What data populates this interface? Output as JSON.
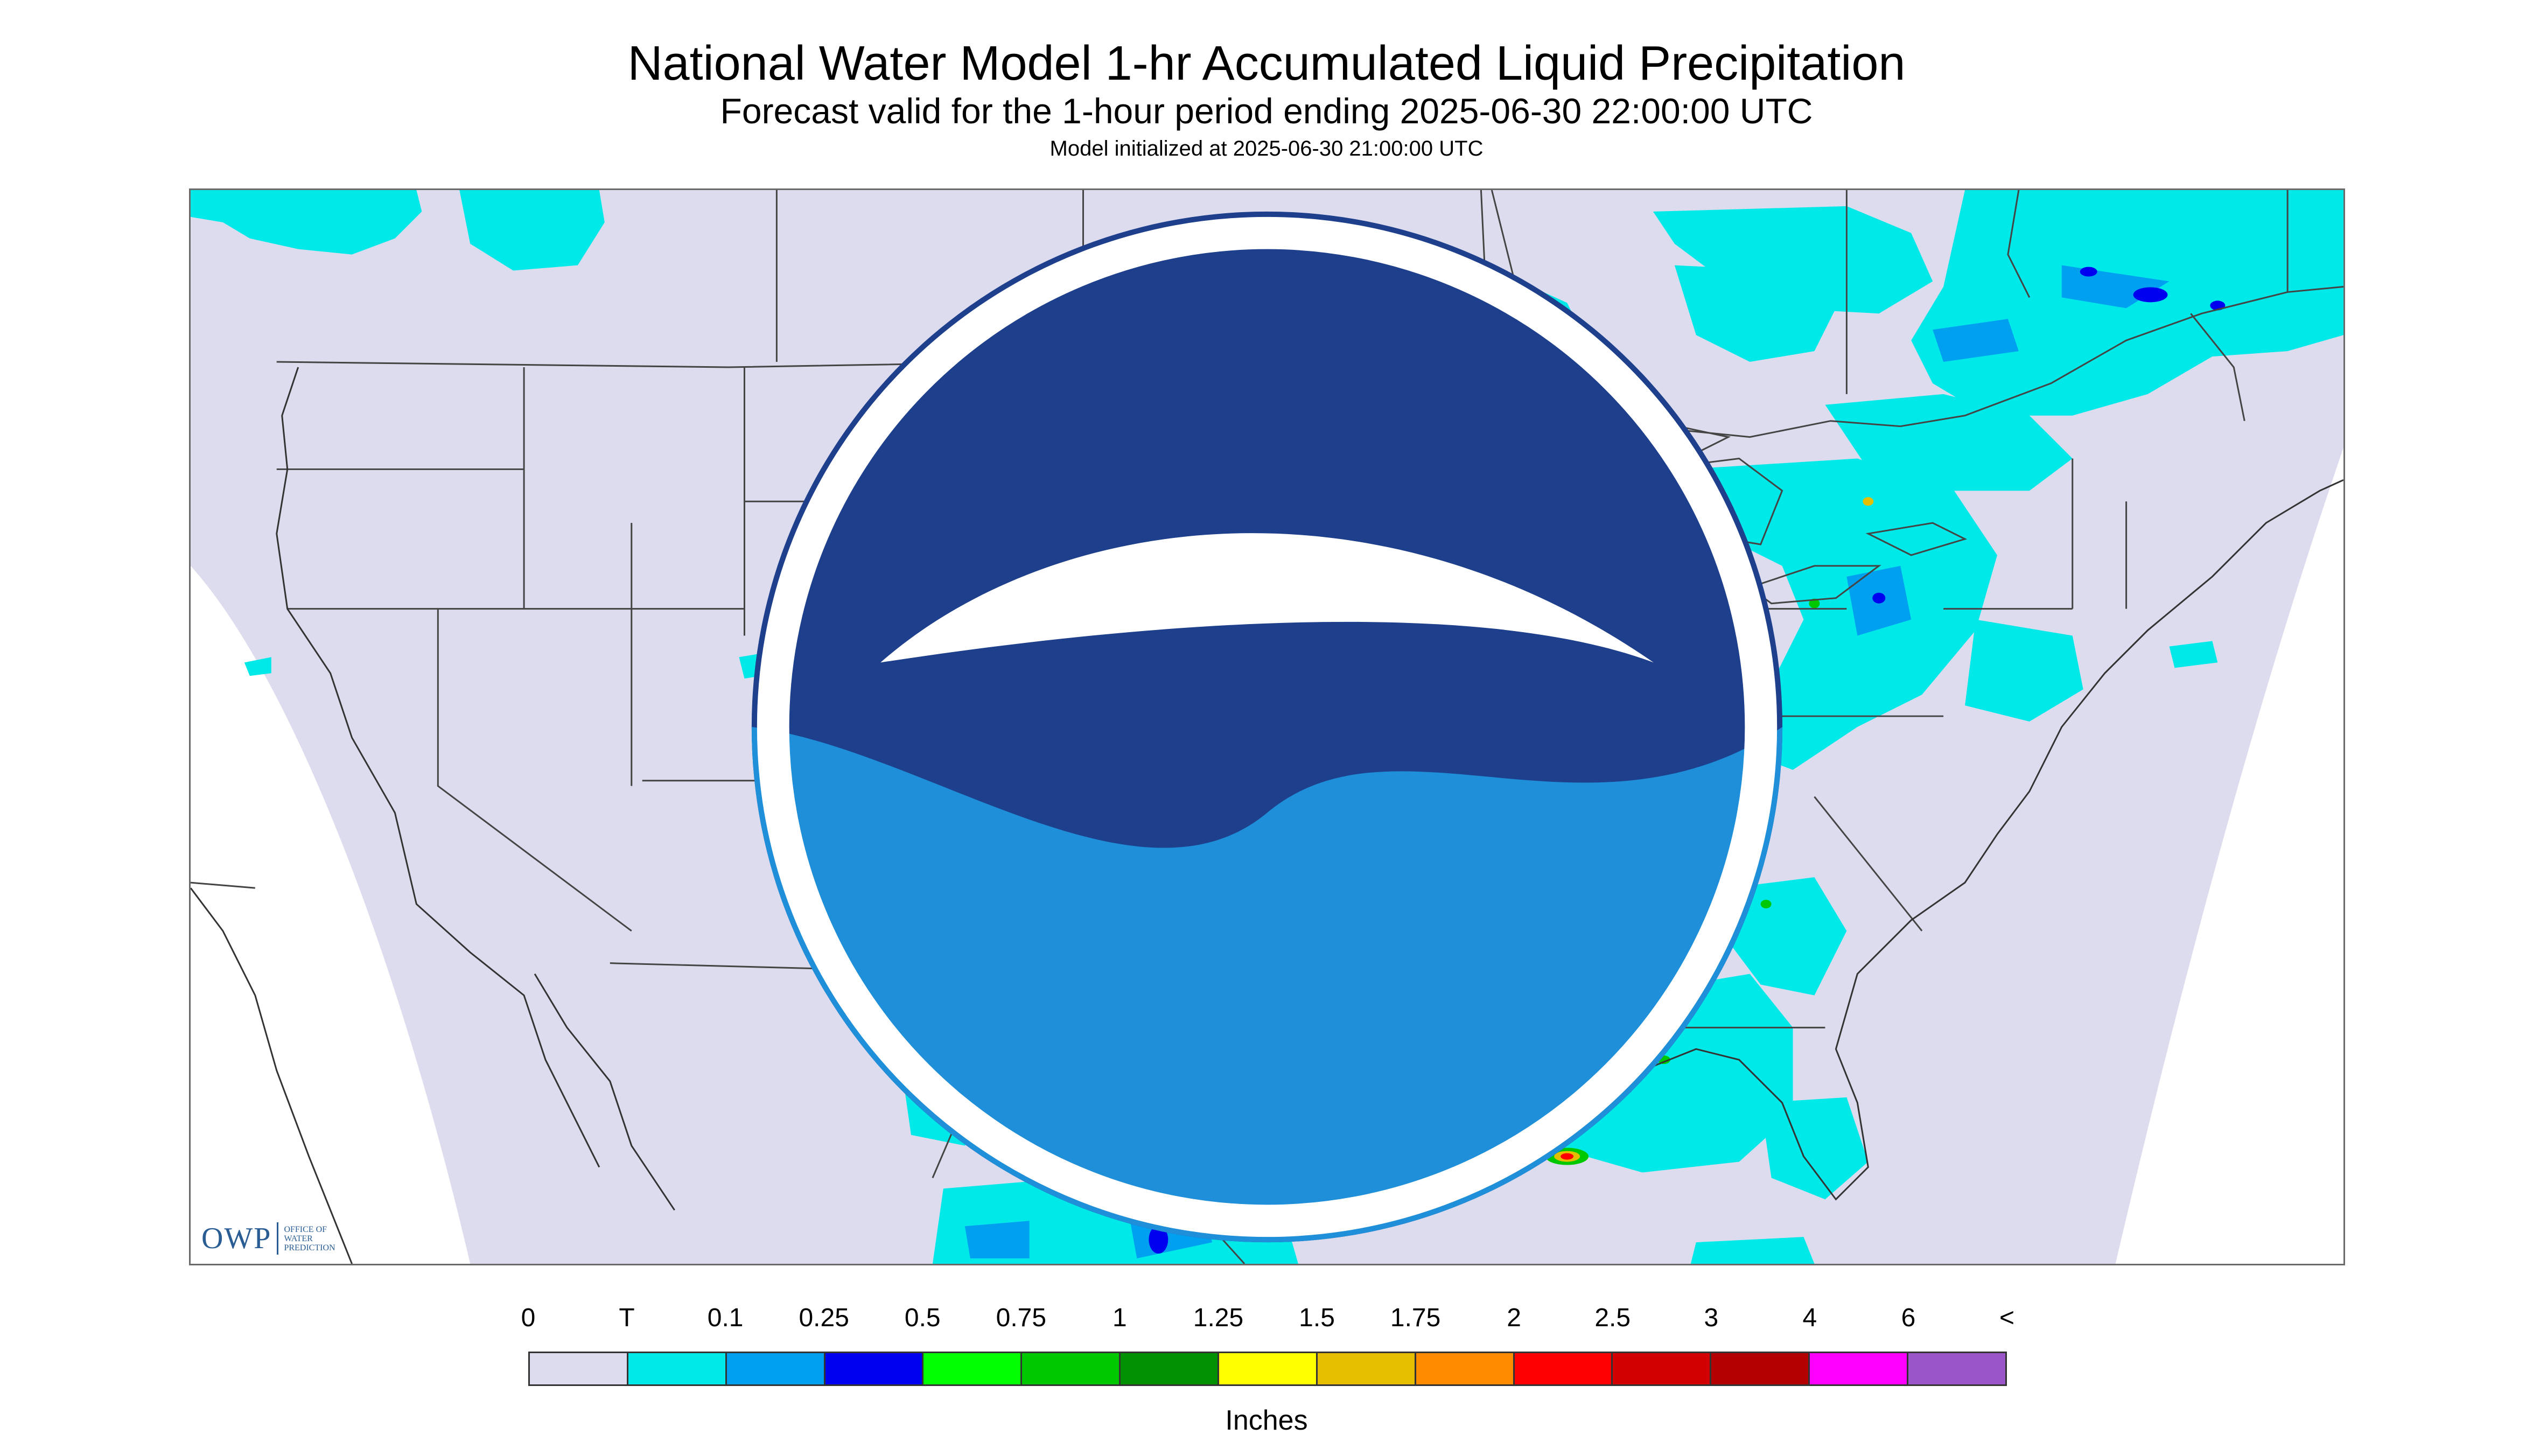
{
  "title": "National Water Model 1-hr Accumulated Liquid Precipitation",
  "subtitle": "Forecast valid for the 1-hour period ending 2025-06-30 22:00:00 UTC",
  "init_line": "Model initialized at 2025-06-30 21:00:00 UTC",
  "logos": {
    "owp": {
      "mark": "OWP",
      "lines": [
        "Office of",
        "Water",
        "Prediction"
      ]
    },
    "noaa": {
      "icon": "noaa-icon"
    }
  },
  "legend": {
    "labels": [
      "0",
      "T",
      "0.1",
      "0.25",
      "0.5",
      "0.75",
      "1",
      "1.25",
      "1.5",
      "1.75",
      "2",
      "2.5",
      "3",
      "4",
      "6",
      "<"
    ],
    "colors": [
      "#dcdcee",
      "#00e9e9",
      "#00a0f0",
      "#0000f0",
      "#00ff00",
      "#00c800",
      "#009000",
      "#ffff00",
      "#e6be00",
      "#ff8c00",
      "#ff0000",
      "#d20000",
      "#b40000",
      "#ff00ff",
      "#9a55c8"
    ],
    "units": "Inches"
  },
  "map": {
    "background_color": "#dcdcee",
    "outside_color": "#ffffff",
    "boundary_color": "#444444"
  }
}
